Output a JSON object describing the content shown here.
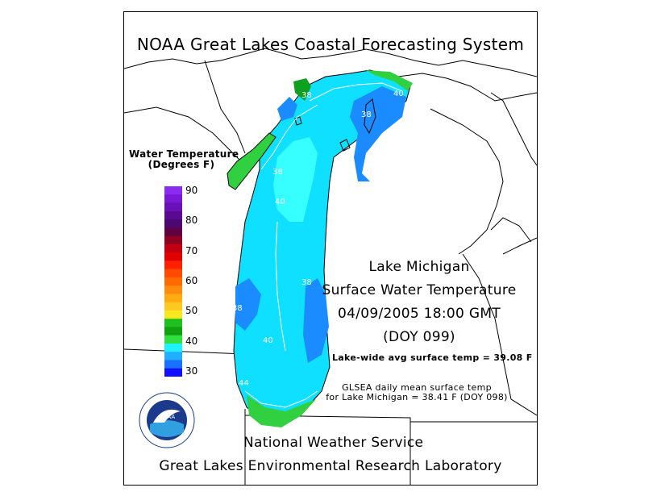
{
  "header": {
    "title": "NOAA Great Lakes Coastal Forecasting System"
  },
  "legend": {
    "title_line1": "Water Temperature",
    "title_line2": "(Degrees F)",
    "scale": [
      {
        "value": "90",
        "color": "#7a18d8"
      },
      {
        "value": "80",
        "color": "#8a1ec8"
      },
      {
        "value": "70",
        "color": "#b01020"
      },
      {
        "value": "60",
        "color": "#ff6a18"
      },
      {
        "value": "50",
        "color": "#ffe020"
      },
      {
        "value": "40",
        "color": "#20e8ff"
      },
      {
        "value": "30",
        "color": "#1010ff"
      }
    ],
    "bands": [
      "#8a2cf0",
      "#7a18d8",
      "#6a10b8",
      "#5a0a90",
      "#4a0870",
      "#600040",
      "#900020",
      "#c00010",
      "#e00000",
      "#ff2000",
      "#ff4a00",
      "#ff6a00",
      "#ff8a10",
      "#ffaa10",
      "#ffc820",
      "#f8e820",
      "#20c020",
      "#10a010",
      "#30e040",
      "#20f0ff",
      "#20b0ff",
      "#1a70ff",
      "#1010ff"
    ]
  },
  "lake_info": {
    "line1": "Lake Michigan",
    "line2": "Surface Water Temperature",
    "line3": "04/09/2005 18:00 GMT",
    "line4": "(DOY 099)",
    "avg_temp": "Lake-wide avg surface temp = 39.08 F",
    "glsea_line1": "GLSEA daily mean surface temp",
    "glsea_line2": "for Lake Michigan = 38.41 F (DOY 098)"
  },
  "contour_labels": {
    "c40_north": "40",
    "c38_north": "38",
    "c38_bay": "38",
    "c38_west": "38",
    "c40_mid": "40",
    "c38_east": "38",
    "c40_south": "40",
    "c38_sw": "38",
    "c44_south": "44"
  },
  "footer": {
    "nws": "National Weather Service",
    "glerl": "Great Lakes Environmental Research Laboratory"
  },
  "logo": {
    "text": "NOAA",
    "icon": "noaa-logo-icon",
    "colors": {
      "ring": "#1b3a8c",
      "sky": "#1b3a8c",
      "bird": "#ffffff",
      "wave": "#30a0e0"
    }
  },
  "colors": {
    "lake_base": "#10e0ff",
    "lake_light": "#38ffff",
    "lake_blue": "#1a8cff",
    "lake_green": "#30d040",
    "lake_dkgreen": "#10a020",
    "contour": "#ffffff",
    "borders": "#000000"
  }
}
